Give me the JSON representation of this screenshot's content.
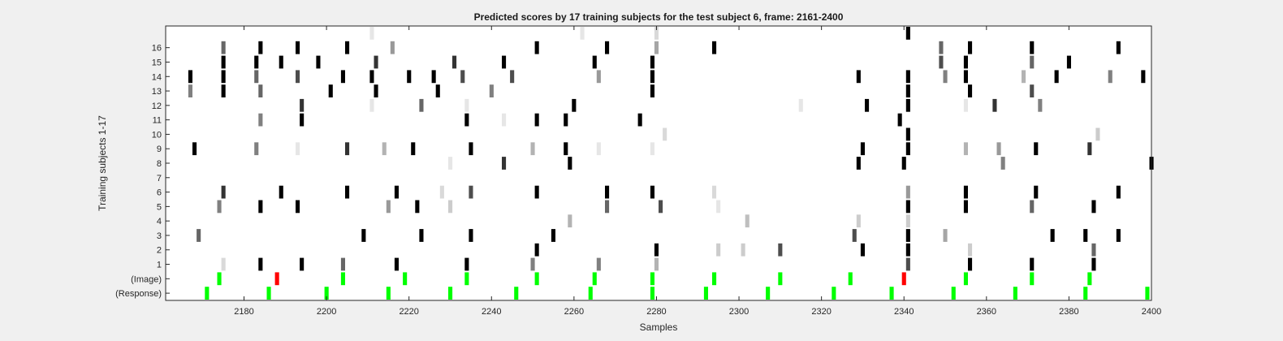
{
  "chart_data": {
    "type": "heatmap",
    "title": "Predicted scores by 17 training subjects for the test subject 6, frame: 2161-2400",
    "xlabel": "Samples",
    "ylabel": "Training subjects 1-17",
    "xlim": [
      2161,
      2400
    ],
    "xticks": [
      2180,
      2200,
      2220,
      2240,
      2260,
      2280,
      2300,
      2320,
      2340,
      2360,
      2380,
      2400
    ],
    "rows": [
      "(Response)",
      "(Image)",
      "1",
      "2",
      "3",
      "4",
      "5",
      "6",
      "7",
      "8",
      "9",
      "10",
      "11",
      "12",
      "13",
      "14",
      "15",
      "16",
      "17"
    ],
    "ytick_labels": [
      "(Response)",
      "(Image)",
      "1",
      "2",
      "3",
      "4",
      "5",
      "6",
      "7",
      "8",
      "9",
      "10",
      "11",
      "12",
      "13",
      "14",
      "15",
      "16"
    ],
    "grid": false,
    "colors": {
      "background": "#f0f0f0",
      "axes": "#ffffff",
      "response": "#00ff00",
      "image": "#00ff00",
      "image_error": "#ff0000"
    },
    "response_marks": [
      2171,
      2186,
      2200,
      2215,
      2230,
      2246,
      2264,
      2279,
      2292,
      2307,
      2323,
      2337,
      2352,
      2367,
      2384,
      2399
    ],
    "image_marks": [
      {
        "x": 2174,
        "error": false
      },
      {
        "x": 2188,
        "error": true
      },
      {
        "x": 2204,
        "error": false
      },
      {
        "x": 2219,
        "error": false
      },
      {
        "x": 2234,
        "error": false
      },
      {
        "x": 2251,
        "error": false
      },
      {
        "x": 2265,
        "error": false
      },
      {
        "x": 2279,
        "error": false
      },
      {
        "x": 2294,
        "error": false
      },
      {
        "x": 2310,
        "error": false
      },
      {
        "x": 2327,
        "error": false
      },
      {
        "x": 2340,
        "error": true
      },
      {
        "x": 2355,
        "error": false
      },
      {
        "x": 2371,
        "error": false
      },
      {
        "x": 2385,
        "error": false
      }
    ],
    "subjects": [
      {
        "row": "1",
        "marks": [
          [
            2175,
            0.15
          ],
          [
            2184,
            1
          ],
          [
            2194,
            1
          ],
          [
            2204,
            0.6
          ],
          [
            2217,
            1
          ],
          [
            2234,
            1
          ],
          [
            2250,
            0.5
          ],
          [
            2266,
            0.5
          ],
          [
            2280,
            0.3
          ],
          [
            2341,
            0.7
          ],
          [
            2356,
            1
          ],
          [
            2371,
            1
          ],
          [
            2386,
            1
          ]
        ]
      },
      {
        "row": "2",
        "marks": [
          [
            2251,
            1
          ],
          [
            2280,
            1
          ],
          [
            2295,
            0.2
          ],
          [
            2301,
            0.2
          ],
          [
            2310,
            0.7
          ],
          [
            2330,
            1
          ],
          [
            2341,
            1
          ],
          [
            2356,
            0.2
          ],
          [
            2386,
            0.6
          ]
        ]
      },
      {
        "row": "3",
        "marks": [
          [
            2169,
            0.6
          ],
          [
            2209,
            1
          ],
          [
            2223,
            1
          ],
          [
            2235,
            1
          ],
          [
            2255,
            1
          ],
          [
            2328,
            0.7
          ],
          [
            2341,
            1
          ],
          [
            2350,
            0.35
          ],
          [
            2376,
            1
          ],
          [
            2384,
            1
          ],
          [
            2392,
            1
          ]
        ]
      },
      {
        "row": "4",
        "marks": [
          [
            2259,
            0.3
          ],
          [
            2302,
            0.25
          ],
          [
            2329,
            0.2
          ],
          [
            2341,
            0.2
          ]
        ]
      },
      {
        "row": "5",
        "marks": [
          [
            2174,
            0.5
          ],
          [
            2184,
            1
          ],
          [
            2193,
            1
          ],
          [
            2215,
            0.4
          ],
          [
            2222,
            1
          ],
          [
            2230,
            0.2
          ],
          [
            2268,
            0.6
          ],
          [
            2281,
            0.7
          ],
          [
            2295,
            0.1
          ],
          [
            2341,
            1
          ],
          [
            2355,
            1
          ],
          [
            2371,
            0.6
          ],
          [
            2386,
            1
          ]
        ]
      },
      {
        "row": "6",
        "marks": [
          [
            2175,
            0.8
          ],
          [
            2189,
            1
          ],
          [
            2205,
            1
          ],
          [
            2217,
            1
          ],
          [
            2228,
            0.15
          ],
          [
            2235,
            0.7
          ],
          [
            2251,
            1
          ],
          [
            2268,
            1
          ],
          [
            2279,
            1
          ],
          [
            2294,
            0.15
          ],
          [
            2341,
            0.4
          ],
          [
            2355,
            1
          ],
          [
            2372,
            1
          ],
          [
            2392,
            1
          ]
        ]
      },
      {
        "row": "7",
        "marks": []
      },
      {
        "row": "8",
        "marks": [
          [
            2230,
            0.1
          ],
          [
            2243,
            0.8
          ],
          [
            2259,
            1
          ],
          [
            2329,
            1
          ],
          [
            2340,
            1
          ],
          [
            2364,
            0.5
          ],
          [
            2400,
            1
          ]
        ]
      },
      {
        "row": "9",
        "marks": [
          [
            2168,
            1
          ],
          [
            2183,
            0.5
          ],
          [
            2193,
            0.1
          ],
          [
            2205,
            0.8
          ],
          [
            2214,
            0.3
          ],
          [
            2221,
            1
          ],
          [
            2235,
            1
          ],
          [
            2250,
            0.3
          ],
          [
            2258,
            1
          ],
          [
            2266,
            0.1
          ],
          [
            2279,
            0.1
          ],
          [
            2330,
            1
          ],
          [
            2341,
            1
          ],
          [
            2355,
            0.3
          ],
          [
            2363,
            0.4
          ],
          [
            2372,
            1
          ],
          [
            2385,
            0.8
          ]
        ]
      },
      {
        "row": "10",
        "marks": [
          [
            2282,
            0.15
          ],
          [
            2341,
            1
          ],
          [
            2387,
            0.2
          ]
        ]
      },
      {
        "row": "11",
        "marks": [
          [
            2184,
            0.5
          ],
          [
            2194,
            1
          ],
          [
            2234,
            1
          ],
          [
            2243,
            0.1
          ],
          [
            2251,
            1
          ],
          [
            2258,
            1
          ],
          [
            2276,
            1
          ],
          [
            2339,
            1
          ]
        ]
      },
      {
        "row": "12",
        "marks": [
          [
            2194,
            0.8
          ],
          [
            2211,
            0.1
          ],
          [
            2223,
            0.6
          ],
          [
            2234,
            0.1
          ],
          [
            2260,
            1
          ],
          [
            2315,
            0.1
          ],
          [
            2331,
            1
          ],
          [
            2341,
            1
          ],
          [
            2355,
            0.1
          ],
          [
            2362,
            0.8
          ],
          [
            2373,
            0.5
          ]
        ]
      },
      {
        "row": "13",
        "marks": [
          [
            2167,
            0.5
          ],
          [
            2175,
            1
          ],
          [
            2184,
            0.6
          ],
          [
            2201,
            1
          ],
          [
            2212,
            1
          ],
          [
            2227,
            1
          ],
          [
            2240,
            0.5
          ],
          [
            2279,
            1
          ],
          [
            2341,
            1
          ],
          [
            2356,
            1
          ],
          [
            2371,
            0.7
          ]
        ]
      },
      {
        "row": "14",
        "marks": [
          [
            2167,
            1
          ],
          [
            2175,
            1
          ],
          [
            2183,
            0.6
          ],
          [
            2193,
            0.7
          ],
          [
            2204,
            1
          ],
          [
            2211,
            1
          ],
          [
            2220,
            1
          ],
          [
            2226,
            1
          ],
          [
            2233,
            0.7
          ],
          [
            2245,
            0.7
          ],
          [
            2266,
            0.4
          ],
          [
            2279,
            1
          ],
          [
            2329,
            1
          ],
          [
            2341,
            1
          ],
          [
            2350,
            0.5
          ],
          [
            2355,
            1
          ],
          [
            2369,
            0.3
          ],
          [
            2377,
            1
          ],
          [
            2390,
            0.5
          ],
          [
            2398,
            1
          ]
        ]
      },
      {
        "row": "15",
        "marks": [
          [
            2175,
            1
          ],
          [
            2183,
            1
          ],
          [
            2189,
            1
          ],
          [
            2198,
            1
          ],
          [
            2212,
            0.8
          ],
          [
            2231,
            0.8
          ],
          [
            2243,
            1
          ],
          [
            2265,
            1
          ],
          [
            2279,
            1
          ],
          [
            2349,
            0.7
          ],
          [
            2355,
            1
          ],
          [
            2371,
            0.6
          ],
          [
            2380,
            1
          ]
        ]
      },
      {
        "row": "16",
        "marks": [
          [
            2175,
            0.6
          ],
          [
            2184,
            1
          ],
          [
            2193,
            1
          ],
          [
            2205,
            1
          ],
          [
            2216,
            0.4
          ],
          [
            2251,
            1
          ],
          [
            2268,
            1
          ],
          [
            2280,
            0.35
          ],
          [
            2294,
            1
          ],
          [
            2349,
            0.6
          ],
          [
            2356,
            1
          ],
          [
            2371,
            1
          ],
          [
            2392,
            1
          ]
        ]
      },
      {
        "row": "17",
        "marks": [
          [
            2211,
            0.1
          ],
          [
            2262,
            0.1
          ],
          [
            2280,
            0.15
          ],
          [
            2341,
            1
          ]
        ]
      }
    ]
  }
}
